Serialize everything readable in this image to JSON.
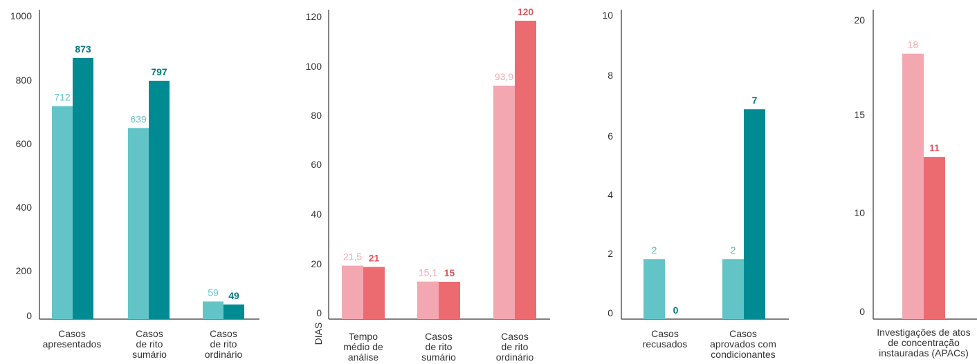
{
  "chart_data": [
    {
      "type": "bar",
      "categories": [
        [
          "Casos",
          "apresentados"
        ],
        [
          "Casos",
          "de rito",
          "sumário"
        ],
        [
          "Casos",
          "de rito",
          "ordinário"
        ]
      ],
      "series": [
        {
          "values": [
            712,
            639,
            59
          ],
          "labels": [
            "712",
            "639",
            "59"
          ],
          "color": "#63c4c8",
          "label_color": "#63c4c8"
        },
        {
          "values": [
            873,
            797,
            49
          ],
          "labels": [
            "873",
            "797",
            "49"
          ],
          "color": "#008b92",
          "label_color": "#007a80"
        }
      ],
      "ylim": [
        0,
        1000
      ],
      "yticks": [
        0,
        200,
        400,
        600,
        800,
        1000
      ],
      "ylabel": ""
    },
    {
      "type": "bar",
      "categories": [
        [
          "Tempo",
          "médio de",
          "análise"
        ],
        [
          "Casos",
          "de rito",
          "sumário"
        ],
        [
          "Casos",
          "de rito",
          "ordinário"
        ]
      ],
      "series": [
        {
          "values": [
            21.5,
            15.1,
            93.9
          ],
          "labels": [
            "21,5",
            "15,1",
            "93,9"
          ],
          "color": "#f3a8b1",
          "label_color": "#f3a8b1"
        },
        {
          "values": [
            21,
            15,
            120
          ],
          "labels": [
            "21",
            "15",
            "120"
          ],
          "color": "#ec6b70",
          "label_color": "#e0555b"
        }
      ],
      "ylim": [
        0,
        120
      ],
      "yticks": [
        0,
        20,
        40,
        60,
        80,
        100,
        120
      ],
      "ylabel": "DIAS"
    },
    {
      "type": "bar",
      "categories": [
        [
          "Casos",
          "recusados"
        ],
        [
          "Casos",
          "aprovados com",
          "condicionantes"
        ]
      ],
      "series": [
        {
          "values": [
            2,
            2
          ],
          "labels": [
            "2",
            "2"
          ],
          "color": "#63c4c8",
          "label_color": "#4fb8bd"
        },
        {
          "values": [
            0,
            7
          ],
          "labels": [
            "0",
            "7"
          ],
          "color": "#008b92",
          "label_color": "#007a80"
        }
      ],
      "ylim": [
        0,
        10
      ],
      "yticks": [
        0,
        2,
        4,
        6,
        8,
        10
      ],
      "ylabel": ""
    },
    {
      "type": "bar",
      "categories": [
        [
          "Investigações de atos",
          "de concentração",
          "instauradas (APACs)"
        ]
      ],
      "series": [
        {
          "values": [
            18
          ],
          "labels": [
            "18"
          ],
          "color": "#f3a8b1",
          "label_color": "#f3a8b1"
        },
        {
          "values": [
            11
          ],
          "labels": [
            "11"
          ],
          "color": "#ec6b70",
          "label_color": "#e0555b"
        }
      ],
      "ylim": [
        0,
        20
      ],
      "yticks": [
        0,
        10,
        15,
        20
      ],
      "ylabel": ""
    }
  ]
}
